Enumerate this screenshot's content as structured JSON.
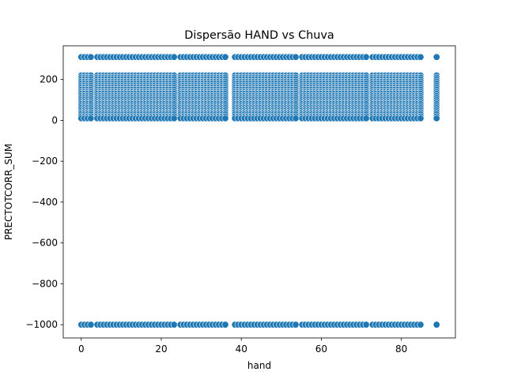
{
  "chart_data": {
    "type": "scatter",
    "title": "Dispersão HAND vs Chuva",
    "xlabel": "hand",
    "ylabel": "PRECTOTCORR_SUM",
    "xlim": [
      -4.5,
      93.5
    ],
    "ylim": [
      -1065,
      365
    ],
    "xticks": [
      0,
      20,
      40,
      60,
      80
    ],
    "yticks": [
      -1000,
      -800,
      -600,
      -400,
      -200,
      0,
      200
    ],
    "grid": false,
    "legend": "none",
    "marker_color": "#1f77b4",
    "marker_edge": "#ffffff",
    "x_range_main": [
      0,
      85
    ],
    "x_outlier": 88.8,
    "x_step": 0.8,
    "y_bands": [
      310,
      220,
      210,
      200,
      190,
      180,
      170,
      160,
      150,
      140,
      130,
      120,
      110,
      100,
      90,
      80,
      70,
      60,
      50,
      40,
      30,
      20,
      10,
      -1000
    ],
    "gaps": [
      [
        2.6,
        3.6
      ],
      [
        23.8,
        24.6
      ],
      [
        36.0,
        37.6
      ],
      [
        53.6,
        54.6
      ],
      [
        71.6,
        72.6
      ]
    ]
  }
}
